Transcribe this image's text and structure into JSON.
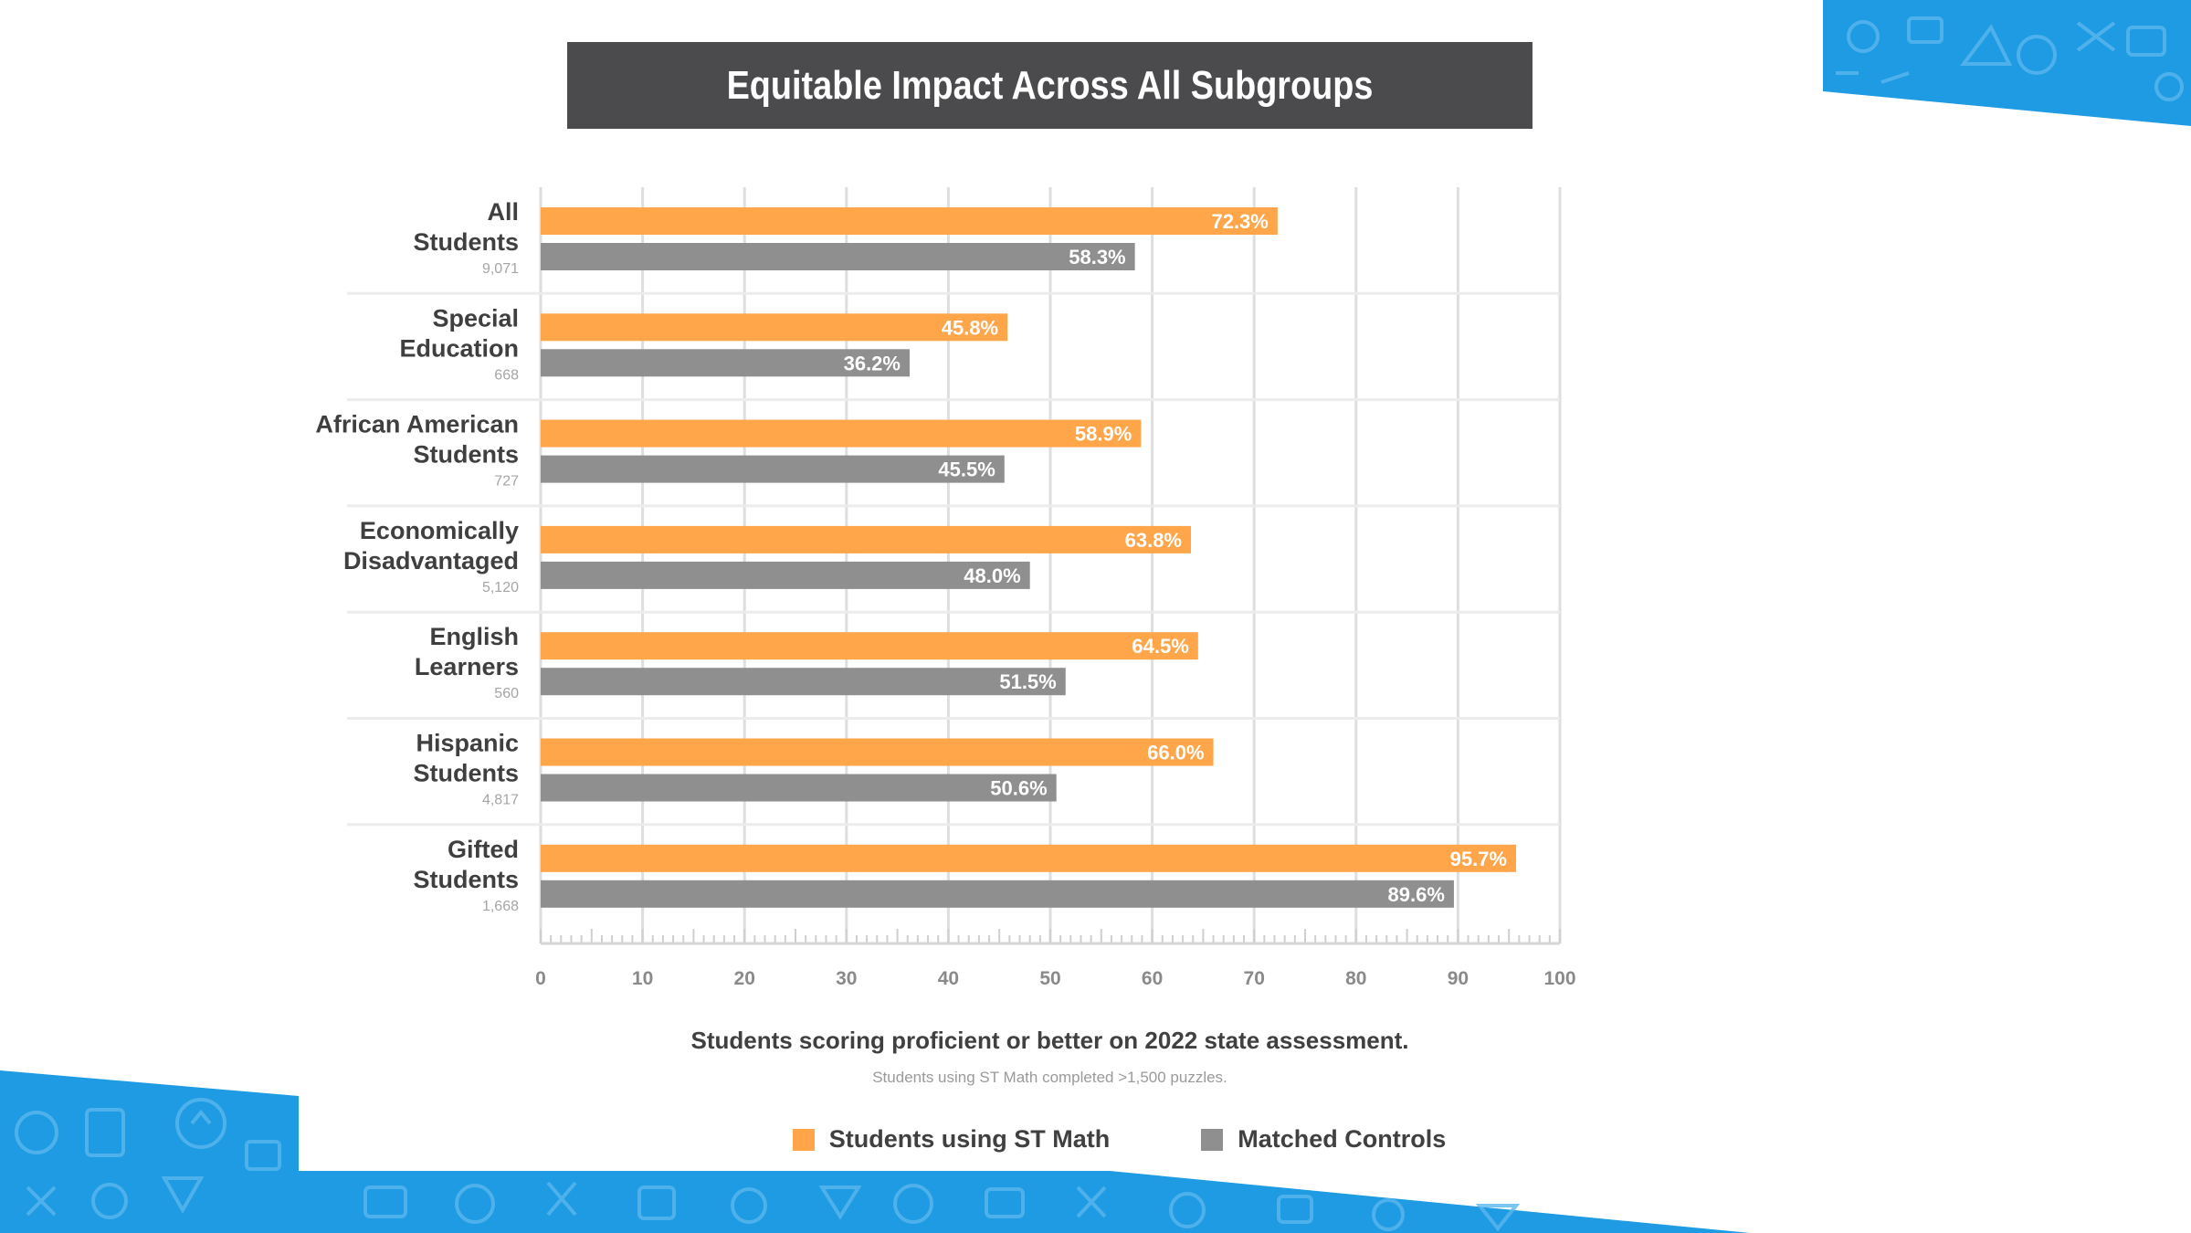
{
  "chart_data": {
    "type": "bar",
    "orientation": "horizontal",
    "title": "Equitable Impact Across All Subgroups",
    "categories": [
      {
        "line1": "All",
        "line2": "Students",
        "n": "9,071"
      },
      {
        "line1": "Special",
        "line2": "Education",
        "n": "668"
      },
      {
        "line1": "African American",
        "line2": "Students",
        "n": "727"
      },
      {
        "line1": "Economically",
        "line2": "Disadvantaged",
        "n": "5,120"
      },
      {
        "line1": "English",
        "line2": "Learners",
        "n": "560"
      },
      {
        "line1": "Hispanic",
        "line2": "Students",
        "n": "4,817"
      },
      {
        "line1": "Gifted",
        "line2": "Students",
        "n": "1,668"
      }
    ],
    "series": [
      {
        "name": "Students using ST Math",
        "color": "#ffa54a",
        "values": [
          72.3,
          45.8,
          58.9,
          63.8,
          64.5,
          66.0,
          95.7
        ],
        "labels": [
          "72.3%",
          "45.8%",
          "58.9%",
          "63.8%",
          "64.5%",
          "66.0%",
          "95.7%"
        ]
      },
      {
        "name": "Matched Controls",
        "color": "#8f8f8f",
        "values": [
          58.3,
          36.2,
          45.5,
          48.0,
          51.5,
          50.6,
          89.6
        ],
        "labels": [
          "58.3%",
          "36.2%",
          "45.5%",
          "48.0%",
          "51.5%",
          "50.6%",
          "89.6%"
        ]
      }
    ],
    "xlim": [
      0,
      100
    ],
    "xticks": [
      "0",
      "10",
      "20",
      "30",
      "40",
      "50",
      "60",
      "70",
      "80",
      "90",
      "100"
    ],
    "xlabel": "Students scoring proficient or better on 2022 state assessment.",
    "note": "Students using ST Math completed >1,500 puzzles.",
    "grid": true,
    "legend_position": "bottom-center"
  },
  "legend": {
    "st_math": "Students using ST Math",
    "controls": "Matched Controls",
    "st_math_color": "#ffa54a",
    "controls_color": "#8f8f8f"
  },
  "colors": {
    "title_bg": "#4b4b4d",
    "accent_blue": "#1f9be3"
  }
}
